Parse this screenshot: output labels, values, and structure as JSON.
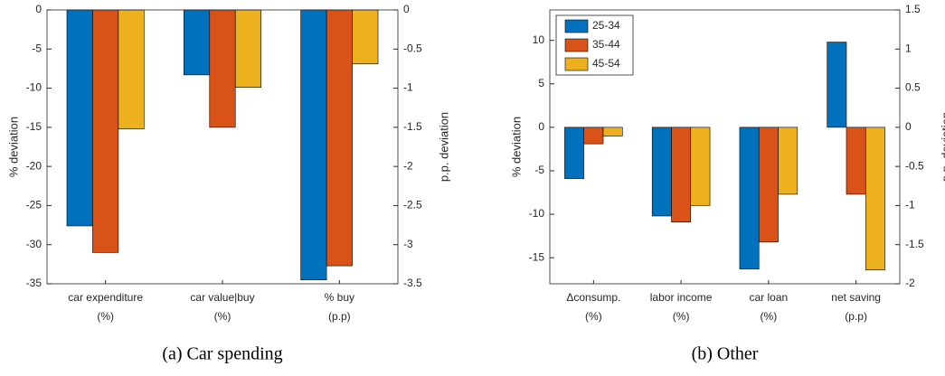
{
  "chart_data": [
    {
      "type": "bar",
      "caption": "(a) Car spending",
      "ylabel": "% deviation",
      "y2label": "p.p. deviation",
      "categories": [
        "car expenditure",
        "car value|buy",
        "% buy"
      ],
      "category_sublabels": [
        "(%)",
        "(%)",
        "(p.p)"
      ],
      "series": [
        {
          "name": "25-34",
          "color": "#0072BD",
          "values": [
            -27.6,
            -8.3,
            -34.5
          ]
        },
        {
          "name": "35-44",
          "color": "#D95319",
          "values": [
            -31.0,
            -15.0,
            -32.7
          ]
        },
        {
          "name": "45-54",
          "color": "#EDB120",
          "values": [
            -15.2,
            -9.9,
            -6.9
          ]
        }
      ],
      "ylim": [
        -35,
        0
      ],
      "yticks": [
        -35,
        -30,
        -25,
        -20,
        -15,
        -10,
        -5,
        0
      ],
      "y2lim": [
        -3.5,
        0
      ],
      "y2ticks": [
        -3.5,
        -3,
        -2.5,
        -2,
        -1.5,
        -1,
        -0.5,
        0
      ]
    },
    {
      "type": "bar",
      "caption": "(b) Other",
      "ylabel": "% deviation",
      "y2label": "p.p. deviation",
      "legend": "upper left",
      "categories": [
        "Δconsump.",
        "labor income",
        "car loan",
        "net saving"
      ],
      "category_sublabels": [
        "(%)",
        "(%)",
        "(%)",
        "(p.p)"
      ],
      "series": [
        {
          "name": "25-34",
          "color": "#0072BD",
          "values": [
            -5.9,
            -10.2,
            -16.3,
            9.8
          ]
        },
        {
          "name": "35-44",
          "color": "#D95319",
          "values": [
            -1.9,
            -10.9,
            -13.2,
            -7.7
          ]
        },
        {
          "name": "45-54",
          "color": "#EDB120",
          "values": [
            -1.0,
            -9.0,
            -7.7,
            -16.4
          ]
        }
      ],
      "ylim": [
        -18,
        13.5
      ],
      "yticks": [
        -15,
        -10,
        -5,
        0,
        5,
        10
      ],
      "y2lim": [
        -2,
        1.5
      ],
      "y2ticks": [
        -2,
        -1.5,
        -1,
        -0.5,
        0,
        0.5,
        1,
        1.5
      ]
    }
  ]
}
